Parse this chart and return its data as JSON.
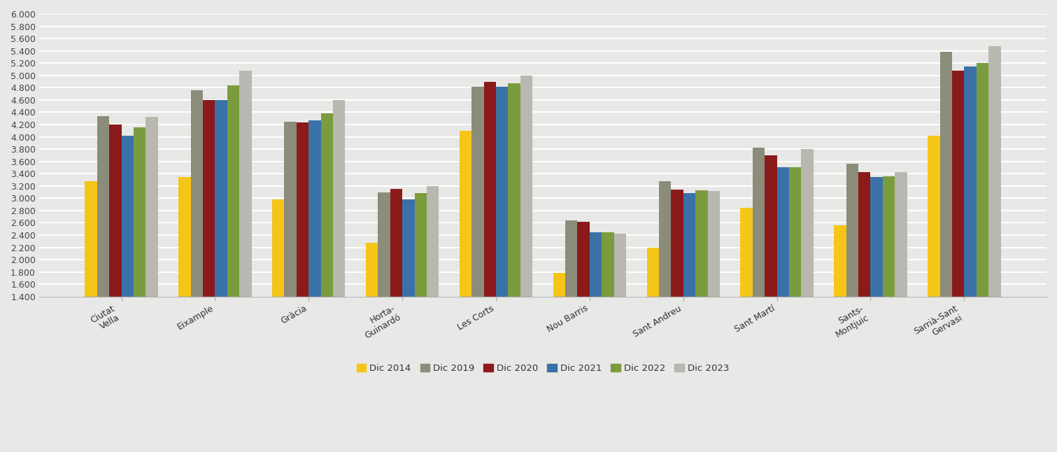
{
  "districts": [
    "Ciutat\nVella",
    "Eixample",
    "Gràcia",
    "Horta-\nGuinardó",
    "Les Corts",
    "Nou Barris",
    "Sant Andreu",
    "Sant Martí",
    "Sants-\nMontjuic",
    "Sarrià-Sant\nGervasi"
  ],
  "series": {
    "Dic 2014": [
      3280,
      3340,
      2980,
      2280,
      4100,
      1780,
      2200,
      2840,
      2560,
      4020
    ],
    "Dic 2019": [
      4340,
      4760,
      4250,
      3100,
      4820,
      2640,
      3280,
      3820,
      3560,
      5380
    ],
    "Dic 2020": [
      4200,
      4600,
      4230,
      3150,
      4900,
      2620,
      3140,
      3700,
      3420,
      5080
    ],
    "Dic 2021": [
      4020,
      4600,
      4270,
      2980,
      4820,
      2450,
      3080,
      3500,
      3340,
      5150
    ],
    "Dic 2022": [
      4150,
      4840,
      4380,
      3080,
      4870,
      2440,
      3130,
      3500,
      3360,
      5200
    ],
    "Dic 2023": [
      4320,
      5080,
      4600,
      3200,
      5000,
      2420,
      3120,
      3800,
      3420,
      5480
    ]
  },
  "colors": {
    "Dic 2014": "#F5C518",
    "Dic 2019": "#8C8C7A",
    "Dic 2020": "#8B1A1A",
    "Dic 2021": "#3A72A8",
    "Dic 2022": "#7B9C3E",
    "Dic 2023": "#B8B8B0"
  },
  "ylim": [
    1400,
    6000
  ],
  "yticks": [
    1400,
    1600,
    1800,
    2000,
    2200,
    2400,
    2600,
    2800,
    3000,
    3200,
    3400,
    3600,
    3800,
    4000,
    4200,
    4400,
    4600,
    4800,
    5000,
    5200,
    5400,
    5600,
    5800,
    6000
  ],
  "background_color": "#E8E8E6",
  "grid_color": "#FFFFFF",
  "bar_width": 0.13,
  "legend_labels": [
    "Dic 2014",
    "Dic 2019",
    "Dic 2020",
    "Dic 2021",
    "Dic 2022",
    "Dic 2023"
  ]
}
